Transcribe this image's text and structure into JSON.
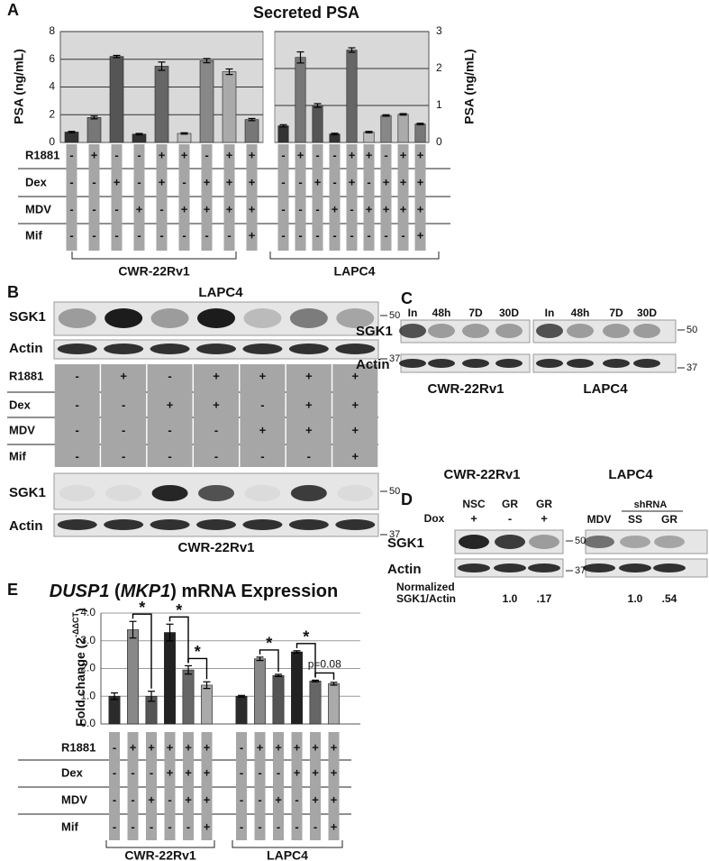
{
  "chart_data": [
    {
      "type": "bar",
      "title": "Secreted PSA",
      "y_label": "PSA (ng/mL)",
      "ylim": [
        0,
        8
      ],
      "yticks": [
        0,
        2,
        4,
        6,
        8
      ],
      "grid": true,
      "tick_side": "left",
      "series": [
        {
          "name": "CWR-22Rv1",
          "values": [
            0.75,
            1.8,
            6.2,
            0.6,
            5.5,
            0.65,
            5.9,
            5.1,
            1.65
          ],
          "errors": [
            0.05,
            0.1,
            0.08,
            0.05,
            0.3,
            0.05,
            0.15,
            0.2,
            0.08
          ],
          "colors": [
            "#333333",
            "#777777",
            "#555555",
            "#333333",
            "#666666",
            "#bbbbbb",
            "#888888",
            "#aaaaaa",
            "#777777"
          ]
        }
      ],
      "conditions": {
        "rows": [
          "R1881",
          "Dex",
          "MDV",
          "Mif"
        ],
        "cells": [
          [
            "-",
            "+",
            "-",
            "-",
            "+",
            "+",
            "-",
            "+",
            "+"
          ],
          [
            "-",
            "-",
            "+",
            "-",
            "+",
            "-",
            "+",
            "+",
            "+"
          ],
          [
            "-",
            "-",
            "-",
            "+",
            "-",
            "+",
            "+",
            "+",
            "+"
          ],
          [
            "-",
            "-",
            "-",
            "-",
            "-",
            "-",
            "-",
            "-",
            "+"
          ]
        ]
      }
    },
    {
      "type": "bar",
      "y_label": "PSA (ng/mL)",
      "ylim": [
        0,
        3
      ],
      "yticks": [
        0,
        1,
        2,
        3
      ],
      "grid": true,
      "tick_side": "right",
      "series": [
        {
          "name": "LAPC4",
          "values": [
            0.45,
            2.3,
            1.0,
            0.23,
            2.5,
            0.28,
            0.73,
            0.76,
            0.5
          ],
          "errors": [
            0.03,
            0.15,
            0.05,
            0.02,
            0.06,
            0.02,
            0.02,
            0.02,
            0.02
          ],
          "colors": [
            "#333333",
            "#777777",
            "#555555",
            "#333333",
            "#666666",
            "#bbbbbb",
            "#888888",
            "#aaaaaa",
            "#777777"
          ]
        }
      ],
      "conditions": {
        "cells": [
          [
            "-",
            "+",
            "-",
            "-",
            "+",
            "+",
            "-",
            "+",
            "+"
          ],
          [
            "-",
            "-",
            "+",
            "-",
            "+",
            "-",
            "+",
            "+",
            "+"
          ],
          [
            "-",
            "-",
            "-",
            "+",
            "-",
            "+",
            "+",
            "+",
            "+"
          ],
          [
            "-",
            "-",
            "-",
            "-",
            "-",
            "-",
            "-",
            "-",
            "+"
          ]
        ]
      }
    },
    {
      "type": "bar",
      "title_parts": [
        {
          "text": "DUSP1",
          "italic": true
        },
        {
          "text": " (",
          "italic": false
        },
        {
          "text": "MKP1",
          "italic": true
        },
        {
          "text": ") mRNA Expression",
          "italic": false
        }
      ],
      "y_label": "Fold change (2",
      "y_label_sup": "-ΔΔCT",
      "y_label_end": ")",
      "ylim": [
        0,
        4
      ],
      "yticks": [
        {
          "value": 0,
          "label": "0.0"
        },
        {
          "value": 1,
          "label": "1.0"
        },
        {
          "value": 2,
          "label": "2.0"
        },
        {
          "value": 3,
          "label": "3.0"
        },
        {
          "value": 4,
          "label": "4.0"
        }
      ],
      "grid": true,
      "tick_side": "left",
      "series": [
        {
          "name": "CWR-22Rv1",
          "values": [
            1.0,
            3.4,
            1.0,
            3.3,
            1.95,
            1.4
          ],
          "errors": [
            0.12,
            0.3,
            0.18,
            0.3,
            0.15,
            0.12
          ],
          "colors": [
            "#2b2b2b",
            "#888888",
            "#555555",
            "#222222",
            "#666666",
            "#aaaaaa"
          ]
        },
        {
          "name": "LAPC4",
          "values": [
            1.0,
            2.35,
            1.75,
            2.6,
            1.55,
            1.45
          ],
          "errors": [
            0.03,
            0.06,
            0.04,
            0.04,
            0.03,
            0.05
          ],
          "colors": [
            "#2b2b2b",
            "#888888",
            "#555555",
            "#222222",
            "#666666",
            "#aaaaaa"
          ]
        }
      ],
      "annotations": [
        "*",
        "*",
        "*",
        "*",
        "*",
        "p=0.08"
      ],
      "conditions": {
        "rows": [
          "R1881",
          "Dex",
          "MDV",
          "Mif"
        ],
        "cells": [
          [
            "-",
            "+",
            "+",
            "+",
            "+",
            "+",
            "-",
            "+",
            "+",
            "+",
            "+",
            "+"
          ],
          [
            "-",
            "-",
            "-",
            "+",
            "+",
            "+",
            "-",
            "-",
            "-",
            "+",
            "+",
            "+"
          ],
          [
            "-",
            "-",
            "+",
            "-",
            "+",
            "+",
            "-",
            "-",
            "+",
            "-",
            "+",
            "+"
          ],
          [
            "-",
            "-",
            "-",
            "-",
            "-",
            "+",
            "-",
            "-",
            "-",
            "-",
            "-",
            "+"
          ]
        ]
      }
    }
  ],
  "figure": {
    "panel_labels": [
      "A",
      "B",
      "C",
      "D",
      "E"
    ],
    "blot_b": {
      "title": "LAPC4",
      "rows": [
        "SGK1",
        "Actin"
      ],
      "markers": [
        "50",
        "37"
      ],
      "conditions": {
        "rows": [
          "R1881",
          "Dex",
          "MDV",
          "Mif"
        ],
        "cells": [
          [
            "-",
            "+",
            "-",
            "+",
            "+",
            "+",
            "+"
          ],
          [
            "-",
            "-",
            "+",
            "+",
            "-",
            "+",
            "+"
          ],
          [
            "-",
            "-",
            "-",
            "-",
            "+",
            "+",
            "+"
          ],
          [
            "-",
            "-",
            "-",
            "-",
            "-",
            "-",
            "+"
          ]
        ]
      },
      "rows2": [
        "SGK1",
        "Actin"
      ],
      "markers2": [
        "50",
        "37"
      ],
      "cell_line": "CWR-22Rv1"
    },
    "blot_c": {
      "lanes": [
        "In",
        "48h",
        "7D",
        "30D",
        "In",
        "48h",
        "7D",
        "30D"
      ],
      "rows": [
        "SGK1",
        "Actin"
      ],
      "markers": [
        "50",
        "37"
      ],
      "cell_lines": [
        "CWR-22Rv1",
        "LAPC4"
      ]
    },
    "blot_d": {
      "cell_lines": [
        "CWR-22Rv1",
        "LAPC4"
      ],
      "lanes": [
        "NSC",
        "GR",
        "GR"
      ],
      "dox_label": "Dox",
      "dox": [
        "+",
        "-",
        "+"
      ],
      "shrna_label": "shRNA",
      "lanes2": [
        "MDV",
        "SS",
        "GR"
      ],
      "rows": [
        "SGK1",
        "Actin"
      ],
      "markers": [
        "50",
        "37"
      ],
      "quant_label": [
        "Normalized",
        "SGK1/Actin"
      ],
      "quant": [
        "1.0",
        ".17",
        "1.0",
        ".54"
      ]
    }
  }
}
